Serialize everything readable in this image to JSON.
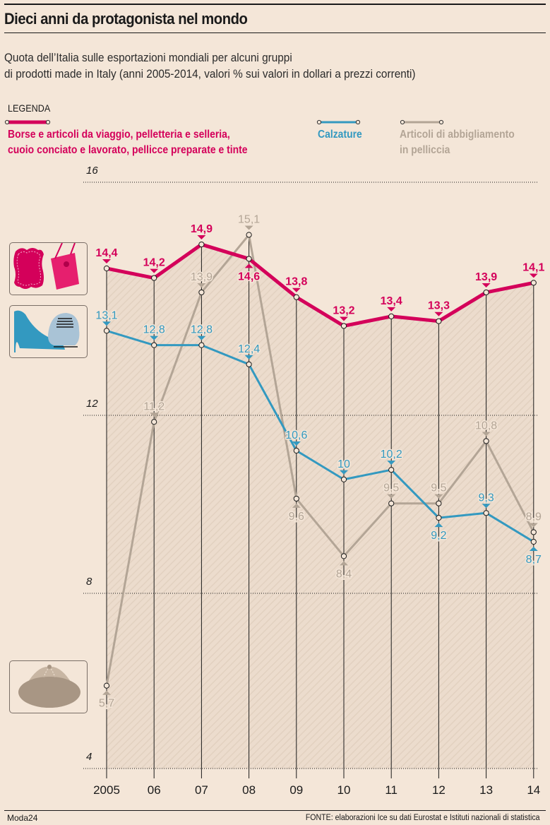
{
  "header": {
    "title": "Dieci anni da protagonista nel mondo",
    "subtitle_line1": "Quota dell’Italia sulle esportazioni mondiali per alcuni gruppi",
    "subtitle_line2": "di prodotti made in Italy (anni 2005-2014, valori % sui valori in dollari a prezzi correnti)"
  },
  "legend": {
    "heading": "LEGENDA",
    "items": [
      {
        "line1": "Borse e articoli da viaggio, pelletteria e selleria,",
        "line2": "cuoio conciato e lavorato, pellicce preparate e tinte",
        "color": "#d4005a",
        "icon": "leather-bag-icon"
      },
      {
        "line1": "Calzature",
        "line2": "",
        "color": "#3399c0",
        "icon": "shoes-icon"
      },
      {
        "line1": "Articoli di abbigliamento",
        "line2": "in pelliccia",
        "color": "#b3a596",
        "icon": "fur-hat-icon"
      }
    ]
  },
  "chart_data": {
    "type": "line",
    "title": "Dieci anni da protagonista nel mondo",
    "xlabel": "",
    "ylabel": "",
    "x": [
      "2005",
      "06",
      "07",
      "08",
      "09",
      "10",
      "11",
      "12",
      "13",
      "14"
    ],
    "yticks": [
      "16",
      "12",
      "8",
      "4"
    ],
    "ylim": [
      4,
      16
    ],
    "grid": true,
    "legend_position": "top",
    "series": [
      {
        "name": "Borse e articoli da viaggio, pelletteria e selleria, cuoio conciato e lavorato, pellicce preparate e tinte",
        "color": "#d4005a",
        "values": [
          14.4,
          14.2,
          14.9,
          14.6,
          13.8,
          13.2,
          13.4,
          13.3,
          13.9,
          14.1
        ],
        "labels": [
          "14,4",
          "14,2",
          "14,9",
          "14,6",
          "13,8",
          "13,2",
          "13,4",
          "13,3",
          "13,9",
          "14,1"
        ],
        "label_pos": [
          "above",
          "above",
          "above",
          "below",
          "above",
          "above",
          "above",
          "above",
          "above",
          "above"
        ]
      },
      {
        "name": "Calzature",
        "color": "#3399c0",
        "values": [
          13.1,
          12.8,
          12.8,
          12.4,
          10.6,
          10.0,
          10.2,
          9.2,
          9.3,
          8.7
        ],
        "labels": [
          "13,1",
          "12,8",
          "12,8",
          "12,4",
          "10,6",
          "10",
          "10,2",
          "9,2",
          "9,3",
          "8,7"
        ],
        "label_pos": [
          "above",
          "above",
          "above",
          "above",
          "above",
          "above",
          "above",
          "below",
          "above",
          "below"
        ]
      },
      {
        "name": "Articoli di abbigliamento in pelliccia",
        "color": "#b3a596",
        "values": [
          5.7,
          11.2,
          13.9,
          15.1,
          9.6,
          8.4,
          9.5,
          9.5,
          10.8,
          8.9
        ],
        "labels": [
          "5,7",
          "11,2",
          "13,9",
          "15,1",
          "9,6",
          "8,4",
          "9,5",
          "9,5",
          "10,8",
          "8,9"
        ],
        "label_pos": [
          "below",
          "above",
          "above",
          "above",
          "below",
          "below",
          "above",
          "above",
          "above",
          "above"
        ]
      }
    ]
  },
  "footer": {
    "brand": "Moda24",
    "source_label": "FONTE:",
    "source_text": "elaborazioni Ice su dati Eurostat e Istituti nazionali di statistica"
  }
}
